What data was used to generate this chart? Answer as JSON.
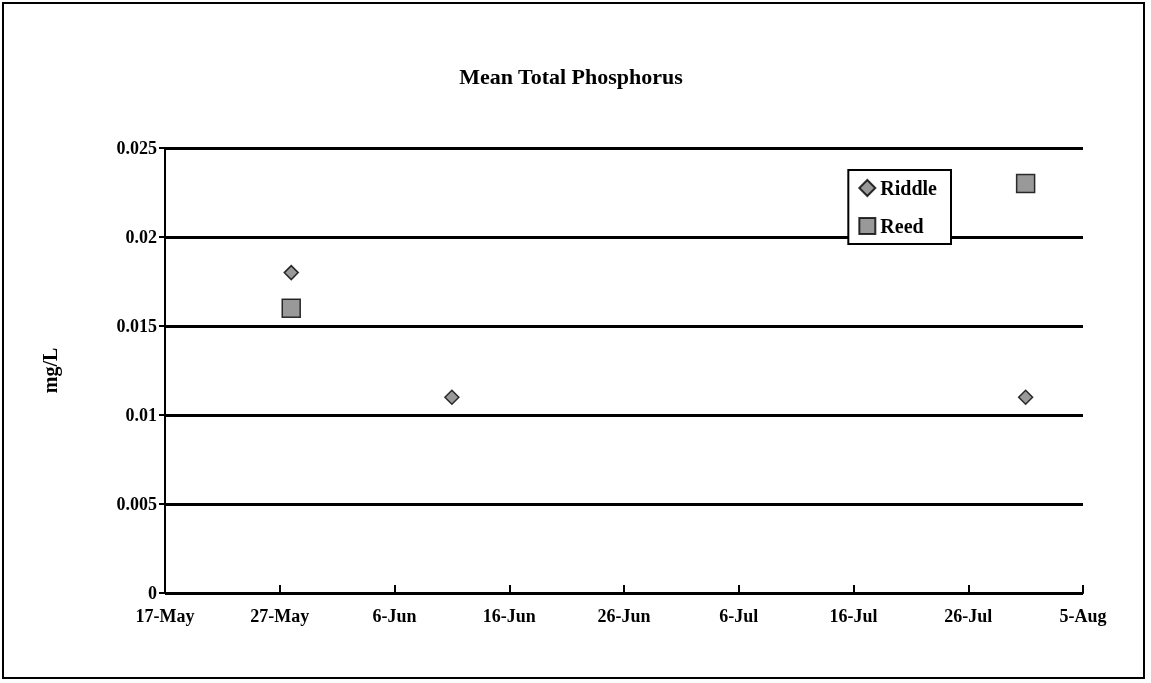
{
  "chart_data": {
    "type": "scatter",
    "title": "Mean Total Phosphorus",
    "ylabel": "mg/L",
    "xlim": [
      "--05-17",
      "--08-05"
    ],
    "xticks": [
      {
        "value": "--05-17",
        "label": "17-May"
      },
      {
        "value": "--05-27",
        "label": "27-May"
      },
      {
        "value": "--06-06",
        "label": "6-Jun"
      },
      {
        "value": "--06-16",
        "label": "16-Jun"
      },
      {
        "value": "--06-26",
        "label": "26-Jun"
      },
      {
        "value": "--07-06",
        "label": "6-Jul"
      },
      {
        "value": "--07-16",
        "label": "16-Jul"
      },
      {
        "value": "--07-26",
        "label": "26-Jul"
      },
      {
        "value": "--08-05",
        "label": "5-Aug"
      }
    ],
    "ylim": [
      0,
      0.025
    ],
    "yticks": [
      0,
      0.005,
      0.01,
      0.015,
      0.02,
      0.025
    ],
    "grid": "y",
    "legend": "top right",
    "series": [
      {
        "name": "Riddle",
        "color": "#808080",
        "marker": "diamond",
        "x": [
          "--05-28",
          "--06-11",
          "--07-31"
        ],
        "values": [
          0.018,
          0.011,
          0.011
        ]
      },
      {
        "name": "Reed",
        "color": "#808080",
        "marker": "square",
        "x": [
          "--05-28",
          "--07-31"
        ],
        "values": [
          0.016,
          0.023
        ]
      }
    ]
  }
}
